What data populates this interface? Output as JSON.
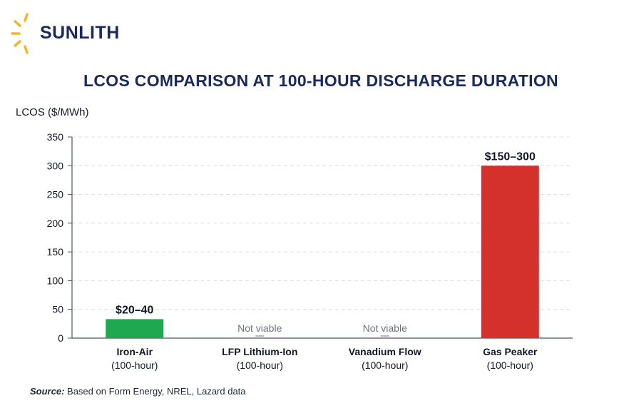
{
  "brand": {
    "name": "SUNLITH",
    "logo_icon": "sun-rays-icon",
    "logo_color": "#f2b824"
  },
  "chart_data": {
    "type": "bar",
    "title": "LCOS COMPARISON AT 100-HOUR DISCHARGE DURATION",
    "ylabel": "LCOS ($/MWh)",
    "ylim": [
      0,
      350
    ],
    "yticks": [
      0,
      50,
      100,
      150,
      200,
      250,
      300,
      350
    ],
    "grid": true,
    "categories": [
      {
        "name": "Iron-Air",
        "sub": "(100-hour)"
      },
      {
        "name": "LFP Lithium-Ion",
        "sub": "(100-hour)"
      },
      {
        "name": "Vanadium Flow",
        "sub": "(100-hour)"
      },
      {
        "name": "Gas Peaker",
        "sub": "(100-hour)"
      }
    ],
    "values": [
      33,
      0,
      0,
      300
    ],
    "data_labels": [
      "$20–40",
      "Not viable",
      "Not viable",
      "$150–300"
    ],
    "colors": [
      "#1fa84f",
      "#9ca3af",
      "#9ca3af",
      "#d5312c"
    ]
  },
  "source": {
    "label": "Source:",
    "text": "Based on Form Energy, NREL, Lazard data"
  }
}
